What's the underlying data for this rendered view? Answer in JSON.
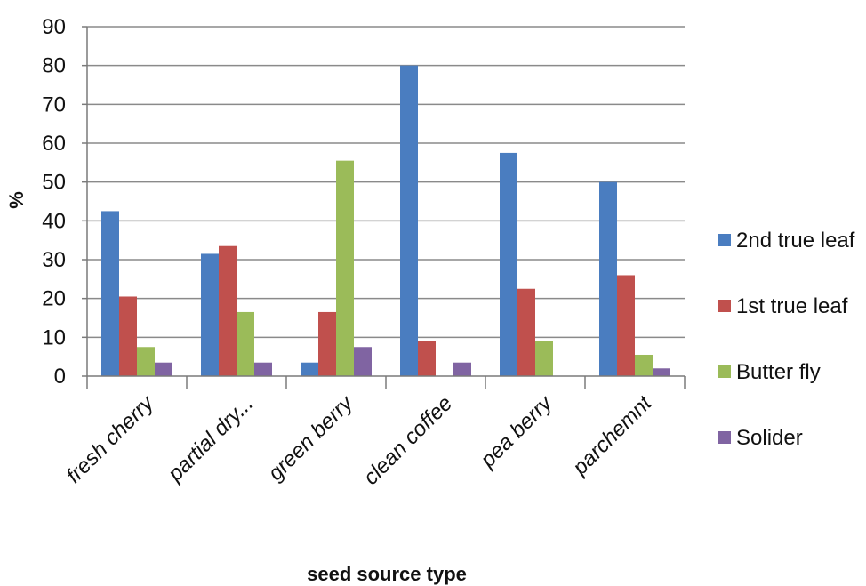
{
  "chart_data": {
    "type": "bar",
    "title": "",
    "xlabel": "seed source type",
    "ylabel": "%",
    "ylim": [
      0,
      90
    ],
    "yticks": [
      0,
      10,
      20,
      30,
      40,
      50,
      60,
      70,
      80,
      90
    ],
    "grid": true,
    "legend_position": "right",
    "categories": [
      "fresh cherry",
      "partial dry...",
      "green berry",
      "clean coffee",
      "pea berry",
      "parchemnt"
    ],
    "series": [
      {
        "name": "2nd true leaf",
        "color": "#4a7dc0",
        "values": [
          42.5,
          31.5,
          3.5,
          80,
          57.5,
          50
        ]
      },
      {
        "name": "1st true leaf",
        "color": "#c0504d",
        "values": [
          20.5,
          33.5,
          16.5,
          9,
          22.5,
          26
        ]
      },
      {
        "name": "Butter fly",
        "color": "#9bbb59",
        "values": [
          7.5,
          16.5,
          55.5,
          0,
          9,
          5.5
        ]
      },
      {
        "name": "Solider",
        "color": "#8064a2",
        "values": [
          3.5,
          3.5,
          7.5,
          3.5,
          0,
          2
        ]
      }
    ]
  }
}
